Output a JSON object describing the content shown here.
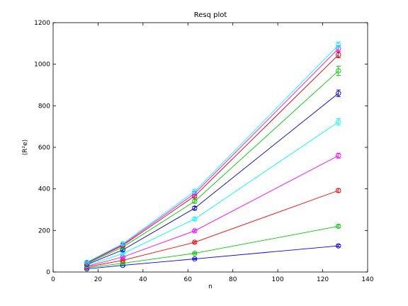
{
  "chart_data": {
    "type": "line",
    "title": "Resq plot",
    "xlabel": "n",
    "ylabel": "⟨R²e⟩",
    "xlim": [
      0,
      140
    ],
    "ylim": [
      0,
      1200
    ],
    "xticks": [
      0,
      20,
      40,
      60,
      80,
      100,
      120,
      140
    ],
    "yticks": [
      0,
      200,
      400,
      600,
      800,
      1000,
      1200
    ],
    "grid": false,
    "legend": "none",
    "marker": "circle",
    "error_bars": true,
    "x": [
      15,
      31,
      63,
      127
    ],
    "series": [
      {
        "color": "#0000ff",
        "values": [
          15,
          32,
          63,
          126
        ],
        "errors": [
          2,
          2,
          3,
          5
        ]
      },
      {
        "color": "#00cc00",
        "values": [
          20,
          42,
          90,
          220
        ],
        "errors": [
          2,
          3,
          4,
          6
        ]
      },
      {
        "color": "#ff0000",
        "values": [
          24,
          56,
          143,
          392
        ],
        "errors": [
          2,
          3,
          5,
          9
        ]
      },
      {
        "color": "#ff00ff",
        "values": [
          28,
          72,
          198,
          560
        ],
        "errors": [
          2,
          4,
          6,
          12
        ]
      },
      {
        "color": "#00ffff",
        "values": [
          32,
          88,
          255,
          722
        ],
        "errors": [
          3,
          4,
          7,
          16
        ]
      },
      {
        "color": "#0000cc",
        "values": [
          36,
          106,
          307,
          860
        ],
        "errors": [
          3,
          5,
          8,
          16
        ]
      },
      {
        "color": "#00cc00",
        "values": [
          40,
          120,
          340,
          968
        ],
        "errors": [
          3,
          5,
          9,
          22
        ]
      },
      {
        "color": "#cc0000",
        "values": [
          43,
          128,
          365,
          1045
        ],
        "errors": [
          3,
          6,
          9,
          14
        ]
      },
      {
        "color": "#ff00ff",
        "values": [
          45,
          132,
          378,
          1075
        ],
        "errors": [
          3,
          6,
          10,
          14
        ]
      },
      {
        "color": "#00ffff",
        "values": [
          47,
          136,
          388,
          1092
        ],
        "errors": [
          3,
          6,
          10,
          14
        ]
      }
    ]
  }
}
